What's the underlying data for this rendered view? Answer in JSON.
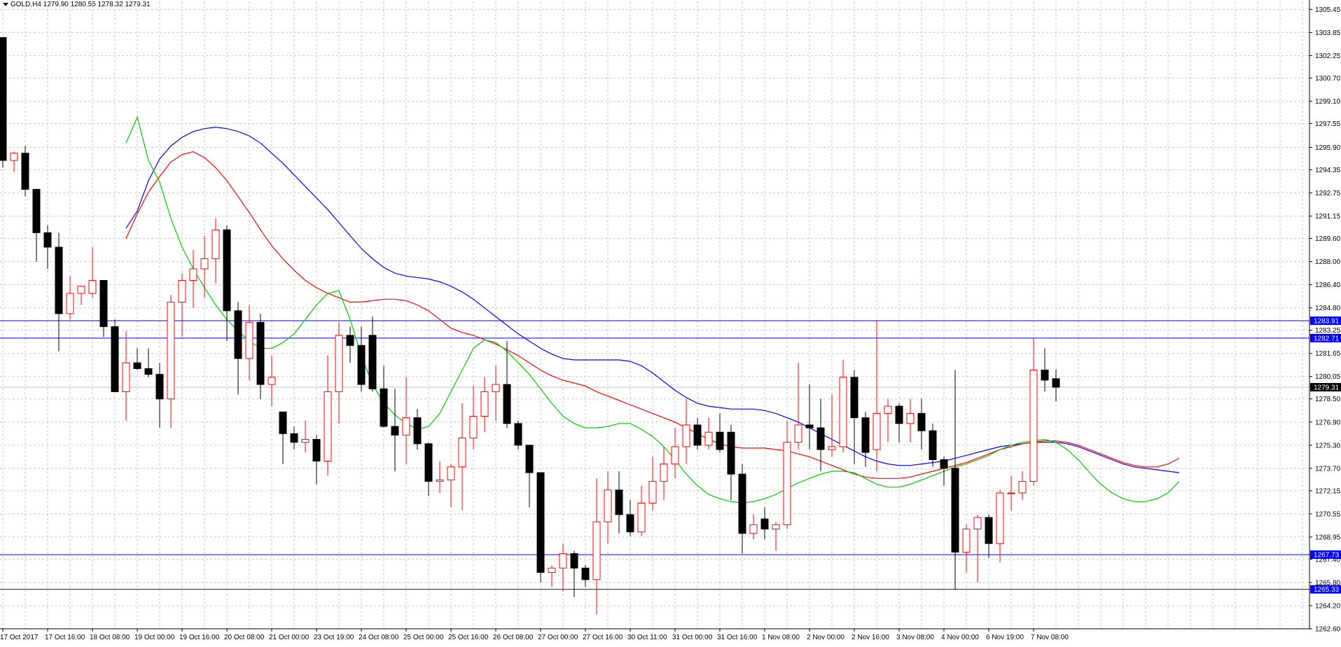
{
  "header": {
    "symbol": "GOLD,H4",
    "ohlc": "1279.90 1280.55 1278.32 1279.31"
  },
  "colors": {
    "bull": "#ff0000",
    "bear": "#000000",
    "grid": "#c8c8c8",
    "hline": "#0000ff",
    "ma_fast": "#00cc00",
    "ma_mid": "#ff0000",
    "ma_slow": "#0000ff",
    "current_price_line": "#c0c0c0",
    "current_price_box": "#000000"
  },
  "chart_data": {
    "type": "candlestick",
    "ylim": [
      1262.6,
      1306.0
    ],
    "y_ticks": [
      "1305.45",
      "1303.85",
      "1302.25",
      "1300.70",
      "1299.10",
      "1297.55",
      "1295.90",
      "1294.35",
      "1292.75",
      "1291.15",
      "1289.60",
      "1288.00",
      "1286.40",
      "1284.80",
      "1283.25",
      "1281.65",
      "1280.05",
      "1278.50",
      "1276.90",
      "1275.30",
      "1273.70",
      "1272.15",
      "1270.55",
      "1268.95",
      "1267.40",
      "1265.80",
      "1264.20",
      "1262.60"
    ],
    "x_ticks": [
      {
        "i": 0,
        "label": "17 Oct 2017"
      },
      {
        "i": 4,
        "label": "17 Oct 16:00"
      },
      {
        "i": 8,
        "label": "18 Oct 08:00"
      },
      {
        "i": 12,
        "label": "19 Oct 00:00"
      },
      {
        "i": 16,
        "label": "19 Oct 16:00"
      },
      {
        "i": 20,
        "label": "20 Oct 08:00"
      },
      {
        "i": 24,
        "label": "21 Oct 00:00"
      },
      {
        "i": 28,
        "label": "23 Oct 19:00"
      },
      {
        "i": 32,
        "label": "24 Oct 08:00"
      },
      {
        "i": 36,
        "label": "25 Oct 00:00"
      },
      {
        "i": 40,
        "label": "25 Oct 16:00"
      },
      {
        "i": 44,
        "label": "26 Oct 08:00"
      },
      {
        "i": 48,
        "label": "27 Oct 00:00"
      },
      {
        "i": 52,
        "label": "27 Oct 16:00"
      },
      {
        "i": 56,
        "label": "30 Oct 11:00"
      },
      {
        "i": 60,
        "label": "31 Oct 00:00"
      },
      {
        "i": 64,
        "label": "31 Oct 16:00"
      },
      {
        "i": 68,
        "label": "1 Nov 08:00"
      },
      {
        "i": 72,
        "label": "2 Nov 00:00"
      },
      {
        "i": 76,
        "label": "2 Nov 16:00"
      },
      {
        "i": 80,
        "label": "3 Nov 08:00"
      },
      {
        "i": 84,
        "label": "4 Nov 00:00"
      },
      {
        "i": 88,
        "label": "6 Nov 19:00"
      },
      {
        "i": 92,
        "label": "7 Nov 08:00"
      }
    ],
    "candles": [
      [
        1303.5,
        1303.5,
        1294.5,
        1295.0
      ],
      [
        1295.0,
        1295.6,
        1294.2,
        1295.5
      ],
      [
        1295.5,
        1296.0,
        1292.5,
        1293.0
      ],
      [
        1293.0,
        1293.0,
        1288.0,
        1290.0
      ],
      [
        1290.0,
        1290.5,
        1287.5,
        1289.0
      ],
      [
        1289.0,
        1290.0,
        1281.8,
        1284.4
      ],
      [
        1284.4,
        1287.0,
        1284.0,
        1285.8
      ],
      [
        1285.8,
        1286.2,
        1285.0,
        1286.3
      ],
      [
        1285.8,
        1289.0,
        1285.5,
        1286.7
      ],
      [
        1286.7,
        1286.7,
        1282.8,
        1283.5
      ],
      [
        1283.5,
        1284.0,
        1279.0,
        1279.0
      ],
      [
        1279.0,
        1283.2,
        1277.0,
        1281.0
      ],
      [
        1281.0,
        1282.0,
        1280.5,
        1280.6
      ],
      [
        1280.6,
        1282.0,
        1280.0,
        1280.2
      ],
      [
        1280.2,
        1281.0,
        1276.5,
        1278.5
      ],
      [
        1278.5,
        1285.7,
        1276.5,
        1285.2
      ],
      [
        1285.2,
        1287.2,
        1282.8,
        1286.7
      ],
      [
        1286.7,
        1288.8,
        1284.8,
        1287.5
      ],
      [
        1287.5,
        1289.8,
        1285.5,
        1288.2
      ],
      [
        1288.2,
        1291.0,
        1286.5,
        1290.2
      ],
      [
        1290.2,
        1290.5,
        1282.5,
        1284.6
      ],
      [
        1284.6,
        1285.2,
        1278.8,
        1281.3
      ],
      [
        1281.3,
        1285.0,
        1279.8,
        1283.8
      ],
      [
        1283.8,
        1284.4,
        1278.5,
        1279.5
      ],
      [
        1279.5,
        1281.5,
        1278.0,
        1280.0
      ],
      [
        1277.6,
        1277.6,
        1274.0,
        1276.1
      ],
      [
        1276.1,
        1276.6,
        1275.0,
        1275.5
      ],
      [
        1275.5,
        1277.0,
        1274.8,
        1275.7
      ],
      [
        1275.7,
        1276.0,
        1272.6,
        1274.2
      ],
      [
        1274.2,
        1281.5,
        1273.2,
        1279.0
      ],
      [
        1279.0,
        1283.8,
        1276.8,
        1282.9
      ],
      [
        1282.9,
        1283.5,
        1281.0,
        1282.2
      ],
      [
        1282.2,
        1283.5,
        1279.0,
        1279.5
      ],
      [
        1282.9,
        1284.2,
        1279.0,
        1279.2
      ],
      [
        1279.2,
        1280.8,
        1276.5,
        1276.6
      ],
      [
        1276.6,
        1279.2,
        1273.5,
        1276.0
      ],
      [
        1276.0,
        1280.0,
        1274.0,
        1277.2
      ],
      [
        1277.2,
        1277.8,
        1275.0,
        1275.4
      ],
      [
        1275.4,
        1275.5,
        1271.8,
        1272.8
      ],
      [
        1272.8,
        1274.2,
        1272.0,
        1272.9
      ],
      [
        1272.9,
        1274.0,
        1271.0,
        1273.8
      ],
      [
        1273.8,
        1278.2,
        1270.8,
        1275.8
      ],
      [
        1275.8,
        1279.4,
        1275.0,
        1277.3
      ],
      [
        1277.3,
        1280.0,
        1276.2,
        1279.0
      ],
      [
        1279.0,
        1280.8,
        1277.0,
        1279.5
      ],
      [
        1279.5,
        1282.5,
        1276.5,
        1276.8
      ],
      [
        1276.8,
        1277.0,
        1275.0,
        1275.3
      ],
      [
        1275.3,
        1275.3,
        1271.0,
        1273.4
      ],
      [
        1273.4,
        1273.4,
        1265.8,
        1266.5
      ],
      [
        1266.5,
        1267.0,
        1265.5,
        1266.8
      ],
      [
        1266.8,
        1268.5,
        1265.2,
        1267.8
      ],
      [
        1267.8,
        1268.0,
        1264.8,
        1266.8
      ],
      [
        1266.8,
        1267.0,
        1265.5,
        1266.0
      ],
      [
        1266.0,
        1273.0,
        1263.6,
        1270.0
      ],
      [
        1270.0,
        1273.5,
        1268.5,
        1272.2
      ],
      [
        1272.2,
        1273.5,
        1269.2,
        1270.5
      ],
      [
        1270.5,
        1271.5,
        1269.0,
        1269.3
      ],
      [
        1269.3,
        1272.5,
        1269.0,
        1271.3
      ],
      [
        1271.3,
        1274.5,
        1270.8,
        1272.8
      ],
      [
        1272.8,
        1275.2,
        1271.5,
        1274.0
      ],
      [
        1274.0,
        1276.5,
        1273.0,
        1275.2
      ],
      [
        1275.2,
        1278.5,
        1274.0,
        1276.7
      ],
      [
        1276.7,
        1277.2,
        1275.0,
        1275.3
      ],
      [
        1275.3,
        1277.2,
        1275.0,
        1276.2
      ],
      [
        1276.2,
        1277.5,
        1274.8,
        1275.0
      ],
      [
        1276.2,
        1276.7,
        1271.5,
        1273.3
      ],
      [
        1273.3,
        1274.0,
        1267.8,
        1269.2
      ],
      [
        1269.2,
        1270.5,
        1268.8,
        1269.8
      ],
      [
        1270.2,
        1271.0,
        1268.8,
        1269.5
      ],
      [
        1269.5,
        1270.0,
        1268.0,
        1269.8
      ],
      [
        1269.8,
        1277.0,
        1269.5,
        1275.5
      ],
      [
        1275.5,
        1281.0,
        1275.0,
        1276.7
      ],
      [
        1276.7,
        1279.5,
        1275.0,
        1276.5
      ],
      [
        1276.5,
        1278.5,
        1273.5,
        1275.0
      ],
      [
        1275.0,
        1278.8,
        1274.5,
        1275.2
      ],
      [
        1275.2,
        1281.2,
        1274.8,
        1280.0
      ],
      [
        1280.0,
        1280.5,
        1274.0,
        1277.2
      ],
      [
        1277.2,
        1277.6,
        1273.8,
        1274.8
      ],
      [
        1275.0,
        1283.9,
        1273.5,
        1277.5
      ],
      [
        1277.5,
        1278.5,
        1275.5,
        1278.0
      ],
      [
        1278.0,
        1278.2,
        1275.5,
        1276.8
      ],
      [
        1276.8,
        1278.5,
        1275.5,
        1277.5
      ],
      [
        1277.5,
        1278.5,
        1275.0,
        1276.3
      ],
      [
        1276.3,
        1276.8,
        1273.8,
        1274.3
      ],
      [
        1274.3,
        1274.5,
        1272.5,
        1273.7
      ],
      [
        1273.7,
        1280.5,
        1265.3,
        1267.9
      ],
      [
        1267.9,
        1269.8,
        1266.5,
        1269.5
      ],
      [
        1269.5,
        1270.5,
        1265.8,
        1270.3
      ],
      [
        1270.3,
        1270.5,
        1267.5,
        1268.5
      ],
      [
        1268.5,
        1272.2,
        1267.2,
        1272.0
      ],
      [
        1272.0,
        1273.2,
        1270.8,
        1272.0
      ],
      [
        1272.0,
        1273.5,
        1271.5,
        1272.8
      ],
      [
        1272.8,
        1282.7,
        1272.5,
        1280.5
      ],
      [
        1280.5,
        1282.0,
        1279.0,
        1279.8
      ],
      [
        1279.9,
        1280.55,
        1278.32,
        1279.31
      ]
    ],
    "ma_fast": [
      1296.2,
      1298.0,
      1295.0,
      1293.5,
      1291.0,
      1289.0,
      1287.5,
      1286.2,
      1285.0,
      1284.0,
      1283.2,
      1282.5,
      1282.0,
      1282.0,
      1282.4,
      1283.0,
      1284.0,
      1285.0,
      1285.8,
      1286.0,
      1284.0,
      1281.5,
      1279.5,
      1278.2,
      1277.4,
      1276.8,
      1276.4,
      1276.6,
      1277.5,
      1279.0,
      1280.5,
      1282.0,
      1282.6,
      1282.4,
      1281.8,
      1281.0,
      1280.2,
      1279.2,
      1278.2,
      1277.3,
      1276.8,
      1276.5,
      1276.5,
      1276.6,
      1276.8,
      1276.8,
      1276.4,
      1275.9,
      1275.2,
      1274.3,
      1273.3,
      1272.5,
      1271.9,
      1271.6,
      1271.4,
      1271.3,
      1271.4,
      1271.6,
      1271.9,
      1272.3,
      1272.7,
      1273.0,
      1273.3,
      1273.5,
      1273.5,
      1273.4,
      1273.0,
      1272.6,
      1272.4,
      1272.4,
      1272.6,
      1272.9,
      1273.2,
      1273.5,
      1273.8,
      1274.0,
      1274.3,
      1274.6,
      1275.0,
      1275.3,
      1275.5,
      1275.6,
      1275.7,
      1275.5,
      1275.0,
      1274.3,
      1273.4,
      1272.6,
      1272.0,
      1271.6,
      1271.4,
      1271.4,
      1271.6,
      1272.0,
      1272.8
    ],
    "ma_mid": [
      1289.6,
      1291.3,
      1292.8,
      1293.9,
      1294.9,
      1295.4,
      1295.6,
      1295.2,
      1294.5,
      1293.6,
      1292.5,
      1291.4,
      1290.2,
      1289.1,
      1288.2,
      1287.4,
      1286.7,
      1286.2,
      1285.8,
      1285.5,
      1285.2,
      1285.2,
      1285.3,
      1285.4,
      1285.4,
      1285.3,
      1285.0,
      1284.6,
      1284.0,
      1283.4,
      1283.1,
      1282.9,
      1282.6,
      1282.3,
      1281.9,
      1281.5,
      1281.0,
      1280.5,
      1280.1,
      1279.8,
      1279.6,
      1279.4,
      1279.0,
      1278.7,
      1278.4,
      1278.1,
      1277.8,
      1277.5,
      1277.2,
      1276.9,
      1276.5,
      1276.1,
      1275.7,
      1275.4,
      1275.2,
      1275.1,
      1275.1,
      1275.1,
      1275.0,
      1274.9,
      1274.7,
      1274.5,
      1274.2,
      1273.9,
      1273.6,
      1273.3,
      1273.1,
      1273.0,
      1273.0,
      1273.0,
      1273.1,
      1273.3,
      1273.5,
      1273.7,
      1273.9,
      1274.1,
      1274.4,
      1274.7,
      1275.0,
      1275.2,
      1275.4,
      1275.5,
      1275.6,
      1275.6,
      1275.5,
      1275.3,
      1275.0,
      1274.7,
      1274.4,
      1274.1,
      1273.9,
      1273.8,
      1273.8,
      1274.0,
      1274.4
    ],
    "ma_slow": [
      1290.3,
      1291.5,
      1293.6,
      1295.1,
      1296.0,
      1296.6,
      1297.0,
      1297.2,
      1297.3,
      1297.2,
      1297.0,
      1296.7,
      1296.2,
      1295.5,
      1294.8,
      1294.0,
      1293.2,
      1292.4,
      1291.6,
      1290.7,
      1289.8,
      1288.9,
      1288.2,
      1287.6,
      1287.2,
      1287.0,
      1286.9,
      1286.8,
      1286.6,
      1286.3,
      1285.9,
      1285.4,
      1284.8,
      1284.2,
      1283.6,
      1283.0,
      1282.5,
      1282.0,
      1281.6,
      1281.3,
      1281.2,
      1281.2,
      1281.2,
      1281.2,
      1281.2,
      1281.1,
      1280.8,
      1280.3,
      1279.7,
      1279.1,
      1278.6,
      1278.2,
      1278.0,
      1277.9,
      1277.8,
      1277.8,
      1277.8,
      1277.7,
      1277.5,
      1277.2,
      1276.9,
      1276.5,
      1276.1,
      1275.7,
      1275.3,
      1274.9,
      1274.5,
      1274.2,
      1274.0,
      1273.9,
      1273.9,
      1274.0,
      1274.1,
      1274.2,
      1274.4,
      1274.6,
      1274.8,
      1275.0,
      1275.2,
      1275.3,
      1275.4,
      1275.5,
      1275.5,
      1275.5,
      1275.4,
      1275.2,
      1274.9,
      1274.6,
      1274.3,
      1274.0,
      1273.8,
      1273.7,
      1273.6,
      1273.5,
      1273.4
    ],
    "ma_offset": 11,
    "horizontal_lines": [
      {
        "value": 1283.91,
        "label": "1283.91"
      },
      {
        "value": 1282.71,
        "label": "1282.71"
      },
      {
        "value": 1267.73,
        "label": "1267.73"
      },
      {
        "value": 1265.33,
        "label": "1265.33"
      }
    ],
    "current_price": {
      "value": 1279.31,
      "label": "1279.31"
    }
  }
}
